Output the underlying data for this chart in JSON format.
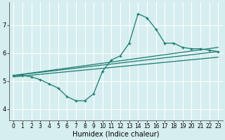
{
  "xlabel": "Humidex (Indice chaleur)",
  "bg_color": "#d6eef0",
  "grid_color": "#ffffff",
  "line_color": "#1a7a6e",
  "xlim": [
    -0.5,
    23.5
  ],
  "ylim": [
    3.6,
    7.8
  ],
  "yticks": [
    4,
    5,
    6,
    7
  ],
  "xticks": [
    0,
    1,
    2,
    3,
    4,
    5,
    6,
    7,
    8,
    9,
    10,
    11,
    12,
    13,
    14,
    15,
    16,
    17,
    18,
    19,
    20,
    21,
    22,
    23
  ],
  "main_x": [
    0,
    1,
    2,
    3,
    4,
    5,
    6,
    7,
    8,
    9,
    10,
    11,
    12,
    13,
    14,
    15,
    16,
    17,
    18,
    19,
    20,
    21,
    22,
    23
  ],
  "main_y": [
    5.2,
    5.2,
    5.15,
    5.05,
    4.9,
    4.75,
    4.45,
    4.3,
    4.3,
    4.55,
    5.35,
    5.75,
    5.9,
    6.35,
    7.4,
    7.25,
    6.85,
    6.35,
    6.35,
    6.2,
    6.15,
    6.15,
    6.1,
    6.05
  ],
  "line1_x": [
    0,
    23
  ],
  "line1_y": [
    5.2,
    6.2
  ],
  "line2_x": [
    0,
    23
  ],
  "line2_y": [
    5.2,
    6.05
  ],
  "line3_x": [
    0,
    23
  ],
  "line3_y": [
    5.15,
    5.85
  ],
  "xlabel_fontsize": 7,
  "tick_fontsize": 5.5
}
